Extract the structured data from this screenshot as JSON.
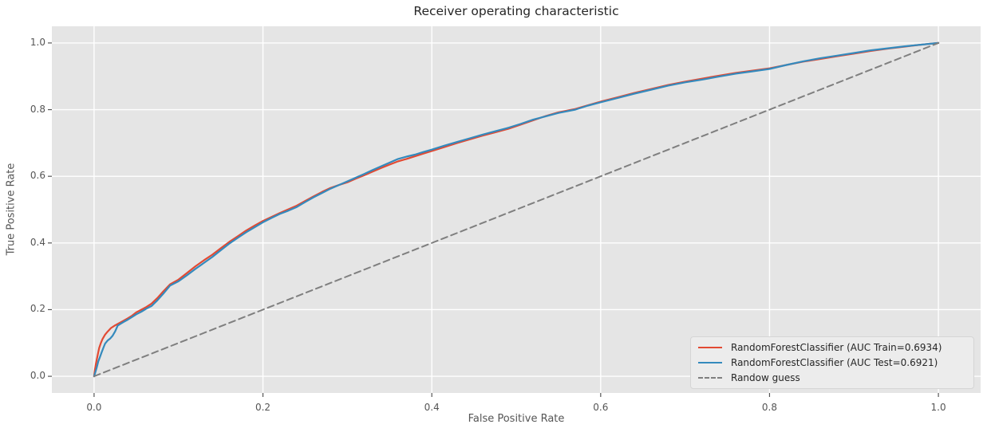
{
  "figure": {
    "background": "#ffffff",
    "axes_background": "#e5e5e5",
    "grid_color": "#ffffff",
    "tick_color": "#555555",
    "text_color": "#555555",
    "title_color": "#262626",
    "legend_background": "#ececec",
    "legend_border": "#d5d5d5"
  },
  "chart_data": {
    "type": "line",
    "title": "Receiver operating characteristic",
    "xlabel": "False Positive Rate",
    "ylabel": "True Positive Rate",
    "xlim": [
      -0.05,
      1.05
    ],
    "ylim": [
      -0.05,
      1.05
    ],
    "xticks": [
      0.0,
      0.2,
      0.4,
      0.6,
      0.8,
      1.0
    ],
    "yticks": [
      0.0,
      0.2,
      0.4,
      0.6,
      0.8,
      1.0
    ],
    "grid": true,
    "legend_position": "lower right",
    "series": [
      {
        "id": "train",
        "name": "RandomForestClassifier (AUC Train=0.6934)",
        "color": "#e24a33",
        "style": "solid",
        "auc": 0.6934,
        "points": [
          [
            0.0,
            0.0
          ],
          [
            0.001,
            0.02
          ],
          [
            0.002,
            0.035
          ],
          [
            0.004,
            0.06
          ],
          [
            0.006,
            0.085
          ],
          [
            0.008,
            0.1
          ],
          [
            0.01,
            0.112
          ],
          [
            0.013,
            0.125
          ],
          [
            0.016,
            0.134
          ],
          [
            0.02,
            0.145
          ],
          [
            0.025,
            0.153
          ],
          [
            0.03,
            0.16
          ],
          [
            0.035,
            0.167
          ],
          [
            0.04,
            0.174
          ],
          [
            0.045,
            0.182
          ],
          [
            0.05,
            0.192
          ],
          [
            0.056,
            0.2
          ],
          [
            0.062,
            0.208
          ],
          [
            0.068,
            0.218
          ],
          [
            0.075,
            0.235
          ],
          [
            0.082,
            0.255
          ],
          [
            0.09,
            0.276
          ],
          [
            0.1,
            0.29
          ],
          [
            0.11,
            0.31
          ],
          [
            0.12,
            0.33
          ],
          [
            0.13,
            0.348
          ],
          [
            0.14,
            0.365
          ],
          [
            0.15,
            0.384
          ],
          [
            0.16,
            0.403
          ],
          [
            0.17,
            0.42
          ],
          [
            0.18,
            0.437
          ],
          [
            0.19,
            0.452
          ],
          [
            0.2,
            0.466
          ],
          [
            0.21,
            0.478
          ],
          [
            0.22,
            0.49
          ],
          [
            0.23,
            0.501
          ],
          [
            0.24,
            0.512
          ],
          [
            0.25,
            0.526
          ],
          [
            0.26,
            0.54
          ],
          [
            0.27,
            0.553
          ],
          [
            0.28,
            0.565
          ],
          [
            0.29,
            0.574
          ],
          [
            0.3,
            0.582
          ],
          [
            0.31,
            0.593
          ],
          [
            0.32,
            0.603
          ],
          [
            0.33,
            0.614
          ],
          [
            0.34,
            0.625
          ],
          [
            0.35,
            0.635
          ],
          [
            0.36,
            0.645
          ],
          [
            0.37,
            0.652
          ],
          [
            0.38,
            0.66
          ],
          [
            0.39,
            0.668
          ],
          [
            0.4,
            0.676
          ],
          [
            0.415,
            0.688
          ],
          [
            0.43,
            0.7
          ],
          [
            0.445,
            0.711
          ],
          [
            0.46,
            0.722
          ],
          [
            0.475,
            0.732
          ],
          [
            0.49,
            0.742
          ],
          [
            0.505,
            0.755
          ],
          [
            0.52,
            0.768
          ],
          [
            0.535,
            0.781
          ],
          [
            0.55,
            0.792
          ],
          [
            0.57,
            0.802
          ],
          [
            0.585,
            0.813
          ],
          [
            0.6,
            0.824
          ],
          [
            0.62,
            0.837
          ],
          [
            0.64,
            0.85
          ],
          [
            0.66,
            0.862
          ],
          [
            0.68,
            0.874
          ],
          [
            0.7,
            0.884
          ],
          [
            0.72,
            0.893
          ],
          [
            0.74,
            0.902
          ],
          [
            0.76,
            0.91
          ],
          [
            0.78,
            0.917
          ],
          [
            0.8,
            0.924
          ],
          [
            0.82,
            0.934
          ],
          [
            0.84,
            0.944
          ],
          [
            0.86,
            0.952
          ],
          [
            0.88,
            0.96
          ],
          [
            0.9,
            0.968
          ],
          [
            0.92,
            0.976
          ],
          [
            0.94,
            0.983
          ],
          [
            0.96,
            0.989
          ],
          [
            0.98,
            0.995
          ],
          [
            1.0,
            1.0
          ]
        ]
      },
      {
        "id": "test",
        "name": "RandomForestClassifier (AUC Test=0.6921)",
        "color": "#348abd",
        "style": "solid",
        "auc": 0.6921,
        "points": [
          [
            0.0,
            0.0
          ],
          [
            0.001,
            0.008
          ],
          [
            0.003,
            0.025
          ],
          [
            0.005,
            0.045
          ],
          [
            0.007,
            0.058
          ],
          [
            0.009,
            0.072
          ],
          [
            0.011,
            0.085
          ],
          [
            0.013,
            0.098
          ],
          [
            0.016,
            0.107
          ],
          [
            0.019,
            0.113
          ],
          [
            0.022,
            0.122
          ],
          [
            0.025,
            0.135
          ],
          [
            0.028,
            0.152
          ],
          [
            0.031,
            0.157
          ],
          [
            0.035,
            0.163
          ],
          [
            0.04,
            0.17
          ],
          [
            0.045,
            0.178
          ],
          [
            0.05,
            0.186
          ],
          [
            0.056,
            0.194
          ],
          [
            0.062,
            0.203
          ],
          [
            0.068,
            0.211
          ],
          [
            0.075,
            0.228
          ],
          [
            0.082,
            0.248
          ],
          [
            0.09,
            0.272
          ],
          [
            0.1,
            0.285
          ],
          [
            0.11,
            0.303
          ],
          [
            0.12,
            0.322
          ],
          [
            0.13,
            0.34
          ],
          [
            0.14,
            0.358
          ],
          [
            0.15,
            0.378
          ],
          [
            0.16,
            0.398
          ],
          [
            0.17,
            0.415
          ],
          [
            0.18,
            0.432
          ],
          [
            0.19,
            0.447
          ],
          [
            0.2,
            0.462
          ],
          [
            0.21,
            0.475
          ],
          [
            0.22,
            0.487
          ],
          [
            0.23,
            0.497
          ],
          [
            0.24,
            0.508
          ],
          [
            0.25,
            0.523
          ],
          [
            0.26,
            0.537
          ],
          [
            0.27,
            0.55
          ],
          [
            0.28,
            0.563
          ],
          [
            0.29,
            0.574
          ],
          [
            0.3,
            0.585
          ],
          [
            0.31,
            0.596
          ],
          [
            0.32,
            0.607
          ],
          [
            0.33,
            0.619
          ],
          [
            0.34,
            0.63
          ],
          [
            0.35,
            0.641
          ],
          [
            0.36,
            0.652
          ],
          [
            0.37,
            0.659
          ],
          [
            0.38,
            0.665
          ],
          [
            0.39,
            0.673
          ],
          [
            0.4,
            0.68
          ],
          [
            0.415,
            0.692
          ],
          [
            0.43,
            0.703
          ],
          [
            0.445,
            0.714
          ],
          [
            0.46,
            0.725
          ],
          [
            0.475,
            0.735
          ],
          [
            0.49,
            0.745
          ],
          [
            0.505,
            0.757
          ],
          [
            0.52,
            0.77
          ],
          [
            0.535,
            0.78
          ],
          [
            0.55,
            0.79
          ],
          [
            0.57,
            0.8
          ],
          [
            0.585,
            0.812
          ],
          [
            0.6,
            0.822
          ],
          [
            0.62,
            0.835
          ],
          [
            0.64,
            0.848
          ],
          [
            0.66,
            0.86
          ],
          [
            0.68,
            0.872
          ],
          [
            0.7,
            0.882
          ],
          [
            0.72,
            0.89
          ],
          [
            0.74,
            0.899
          ],
          [
            0.76,
            0.908
          ],
          [
            0.78,
            0.915
          ],
          [
            0.8,
            0.922
          ],
          [
            0.82,
            0.934
          ],
          [
            0.84,
            0.945
          ],
          [
            0.86,
            0.954
          ],
          [
            0.88,
            0.962
          ],
          [
            0.9,
            0.97
          ],
          [
            0.92,
            0.978
          ],
          [
            0.94,
            0.984
          ],
          [
            0.96,
            0.99
          ],
          [
            0.98,
            0.995
          ],
          [
            1.0,
            1.0
          ]
        ]
      },
      {
        "id": "random-guess",
        "name": "Randow guess",
        "color": "#7f7f7f",
        "style": "dashed",
        "points": [
          [
            0.0,
            0.0
          ],
          [
            1.0,
            1.0
          ]
        ]
      }
    ]
  }
}
